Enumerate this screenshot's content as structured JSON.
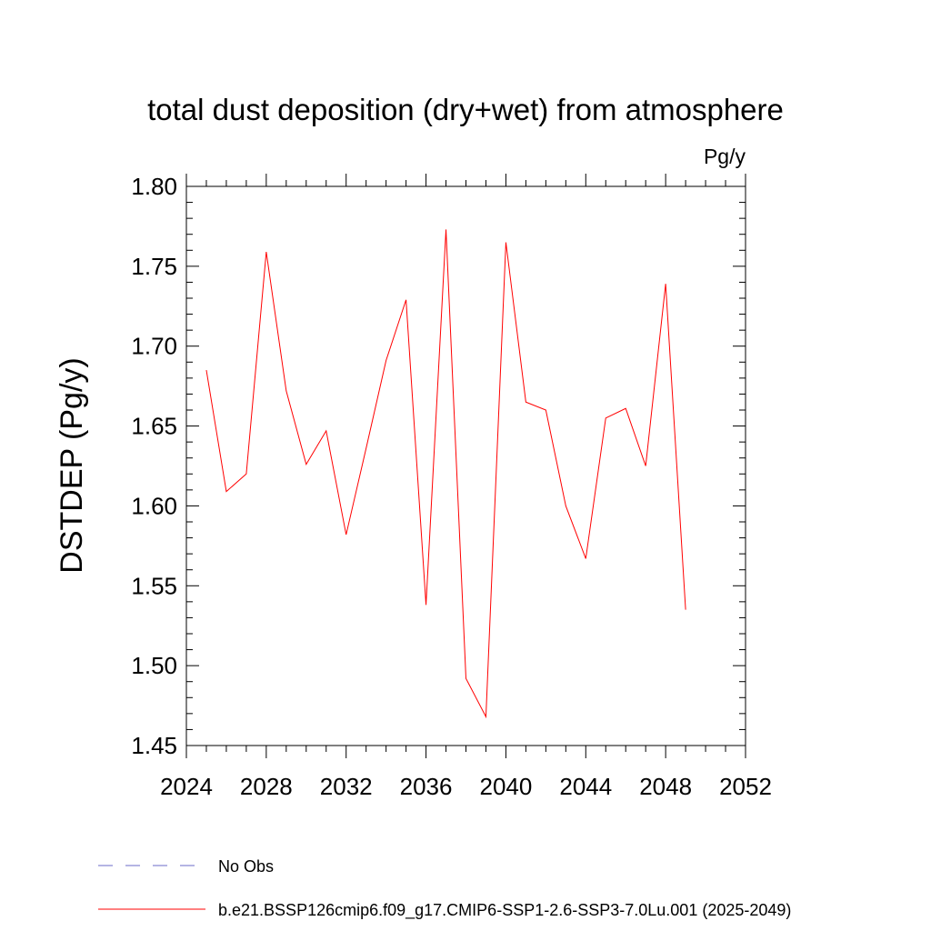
{
  "chart_data": {
    "type": "line",
    "title": "total dust deposition (dry+wet) from atmosphere",
    "units_label": "Pg/y",
    "ylabel": "DSTDEP  (Pg/y)",
    "xlabel": "",
    "xlim": [
      2024,
      2052
    ],
    "ylim": [
      1.45,
      1.8
    ],
    "x_ticks": [
      2024,
      2028,
      2032,
      2036,
      2040,
      2044,
      2048,
      2052
    ],
    "x_tick_labels": [
      "2024",
      "2028",
      "2032",
      "2036",
      "2040",
      "2044",
      "2048",
      "2052"
    ],
    "y_ticks": [
      1.45,
      1.5,
      1.55,
      1.6,
      1.65,
      1.7,
      1.75,
      1.8
    ],
    "y_tick_labels": [
      "1.45",
      "1.50",
      "1.55",
      "1.60",
      "1.65",
      "1.70",
      "1.75",
      "1.80"
    ],
    "grid": false,
    "legend_position": "bottom",
    "series": [
      {
        "name": "b.e21.BSSP126cmip6.f09_g17.CMIP6-SSP1-2.6-SSP3-7.0Lu.001 (2025-2049)",
        "color": "#ff0000",
        "dash": "solid",
        "x": [
          2025,
          2026,
          2027,
          2028,
          2029,
          2030,
          2031,
          2032,
          2033,
          2034,
          2035,
          2036,
          2037,
          2038,
          2039,
          2040,
          2041,
          2042,
          2043,
          2044,
          2045,
          2046,
          2047,
          2048,
          2049
        ],
        "y": [
          1.685,
          1.609,
          1.62,
          1.759,
          1.672,
          1.626,
          1.647,
          1.582,
          1.636,
          1.691,
          1.729,
          1.538,
          1.773,
          1.492,
          1.468,
          1.765,
          1.665,
          1.66,
          1.6,
          1.567,
          1.655,
          1.661,
          1.625,
          1.739,
          1.535
        ]
      }
    ],
    "legend": [
      {
        "label": "No Obs",
        "color": "#6b6bc8",
        "dash": "dashed"
      },
      {
        "label": "b.e21.BSSP126cmip6.f09_g17.CMIP6-SSP1-2.6-SSP3-7.0Lu.001 (2025-2049)",
        "color": "#ff0000",
        "dash": "solid"
      }
    ]
  }
}
